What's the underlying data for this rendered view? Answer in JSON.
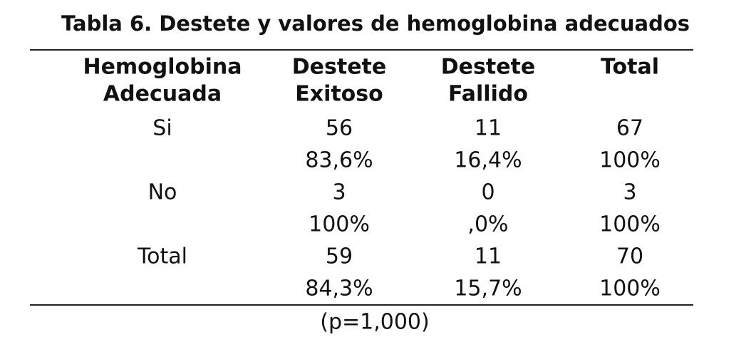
{
  "title": "Tabla 6. Destete y valores de hemoglobina adecuados",
  "table": {
    "header": [
      [
        "Hemoglobina",
        "Adecuada"
      ],
      [
        "Destete",
        "Exitoso"
      ],
      [
        "Destete",
        "Fallido"
      ],
      [
        "Total"
      ]
    ],
    "groups": [
      {
        "label": "Si",
        "counts": [
          56,
          11,
          67
        ],
        "percents": [
          "83,6%",
          "16,4%",
          "100%"
        ]
      },
      {
        "label": "No",
        "counts": [
          3,
          0,
          3
        ],
        "percents": [
          "100%",
          ",0%",
          "100%"
        ]
      },
      {
        "label": "Total",
        "counts": [
          59,
          11,
          70
        ],
        "percents": [
          "84,3%",
          "15,7%",
          "100%"
        ]
      }
    ]
  },
  "footnote": "(p=1,000)"
}
